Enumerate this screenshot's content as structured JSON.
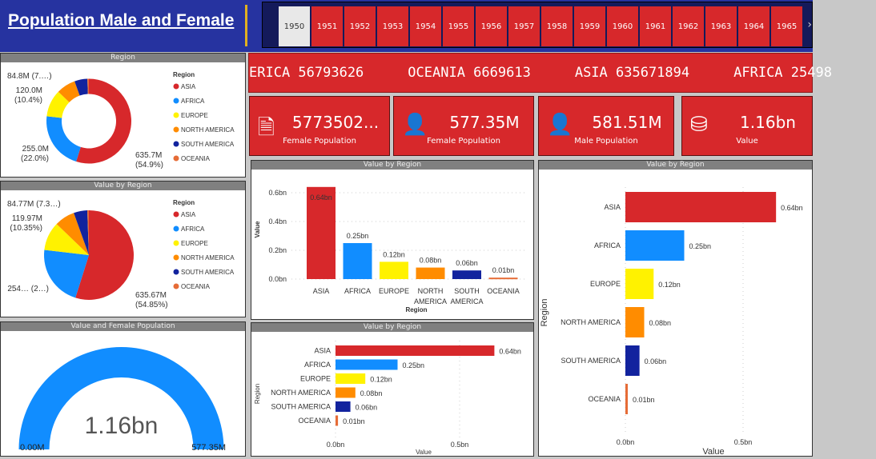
{
  "header": {
    "title": "Population Male and Female"
  },
  "slicer": {
    "years": [
      "1950",
      "1951",
      "1952",
      "1953",
      "1954",
      "1955",
      "1956",
      "1957",
      "1958",
      "1959",
      "1960",
      "1961",
      "1962",
      "1963",
      "1964",
      "1965"
    ],
    "selected": "1950"
  },
  "ticker": {
    "items": [
      "ERICA 56793626",
      "OCEANIA 6669613",
      "ASIA 635671894",
      "AFRICA 25498"
    ]
  },
  "cards": [
    {
      "value": "5773502...",
      "label": "Female Population",
      "icon": "money-plus-icon"
    },
    {
      "value": "577.35M",
      "label": "Female Population",
      "icon": "person-icon"
    },
    {
      "value": "581.51M",
      "label": "Male Population",
      "icon": "person-icon"
    },
    {
      "value": "1.16bn",
      "label": "Value",
      "icon": "coins-icon"
    }
  ],
  "colors": {
    "ASIA": "#d7282b",
    "AFRICA": "#118dff",
    "EUROPE": "#fff200",
    "NORTH AMERICA": "#ff8c00",
    "SOUTH AMERICA": "#12239e",
    "OCEANIA": "#e66c37",
    "header": "#2633a0",
    "card": "#d7282b"
  },
  "chart_data": [
    {
      "type": "pie",
      "variant": "donut",
      "title": "Region",
      "legend_title": "Region",
      "legend_position": "right",
      "categories": [
        "ASIA",
        "AFRICA",
        "EUROPE",
        "NORTH AMERICA",
        "SOUTH AMERICA",
        "OCEANIA"
      ],
      "values": [
        635.7,
        255.0,
        120.0,
        84.8,
        56.8,
        6.7
      ],
      "labels": [
        {
          "v": "635.7M",
          "p": "(54.9%)"
        },
        {
          "v": "255.0M",
          "p": "(22.0%)"
        },
        {
          "v": "120.0M",
          "p": "(10.4%)"
        },
        {
          "v": "84.8M (7.…)",
          "p": ""
        }
      ]
    },
    {
      "type": "pie",
      "title": "Value by Region",
      "legend_title": "Region",
      "legend_position": "right",
      "categories": [
        "ASIA",
        "AFRICA",
        "EUROPE",
        "NORTH AMERICA",
        "SOUTH AMERICA",
        "OCEANIA"
      ],
      "values": [
        635.67,
        254.98,
        119.97,
        84.77,
        56.79,
        6.67
      ],
      "labels": [
        {
          "v": "635.67M",
          "p": "(54.85%)"
        },
        {
          "v": "254… (2…)",
          "p": ""
        },
        {
          "v": "119.97M",
          "p": "(10.35%)"
        },
        {
          "v": "84.77M (7.3…)",
          "p": ""
        }
      ]
    },
    {
      "type": "gauge",
      "title": "Value and Female Population",
      "value": 1.16,
      "value_label": "1.16bn",
      "min_label": "0.00M",
      "max_label": "577.35M"
    },
    {
      "type": "bar",
      "orientation": "vertical",
      "title": "Value by Region",
      "xlabel": "Region",
      "ylabel": "Value",
      "categories": [
        "ASIA",
        "AFRICA",
        "EUROPE",
        "NORTH AMERICA",
        "SOUTH AMERICA",
        "OCEANIA"
      ],
      "values": [
        0.64,
        0.25,
        0.12,
        0.08,
        0.06,
        0.01
      ],
      "data_labels": [
        "0.64bn",
        "0.25bn",
        "0.12bn",
        "0.08bn",
        "0.06bn",
        "0.01bn"
      ],
      "yticks": [
        "0.0bn",
        "0.2bn",
        "0.4bn",
        "0.6bn"
      ],
      "ylim": [
        0,
        0.7
      ],
      "grid": true
    },
    {
      "type": "bar",
      "orientation": "horizontal",
      "title": "Value by Region",
      "xlabel": "Value",
      "ylabel": "Region",
      "categories": [
        "ASIA",
        "AFRICA",
        "EUROPE",
        "NORTH AMERICA",
        "SOUTH AMERICA",
        "OCEANIA"
      ],
      "values": [
        0.64,
        0.25,
        0.12,
        0.08,
        0.06,
        0.01
      ],
      "data_labels": [
        "0.64bn",
        "0.25bn",
        "0.12bn",
        "0.08bn",
        "0.06bn",
        "0.01bn"
      ],
      "xticks": [
        "0.0bn",
        "0.5bn"
      ],
      "xlim": [
        0,
        0.75
      ],
      "grid": true
    },
    {
      "type": "bar",
      "orientation": "horizontal",
      "title": "Value by Region",
      "xlabel": "Value",
      "ylabel": "Region",
      "categories": [
        "ASIA",
        "AFRICA",
        "EUROPE",
        "NORTH AMERICA",
        "SOUTH AMERICA",
        "OCEANIA"
      ],
      "values": [
        0.64,
        0.25,
        0.12,
        0.08,
        0.06,
        0.01
      ],
      "data_labels": [
        "0.64bn",
        "0.25bn",
        "0.12bn",
        "0.08bn",
        "0.06bn",
        "0.01bn"
      ],
      "xticks": [
        "0.0bn",
        "0.5bn"
      ],
      "xlim": [
        0,
        0.66
      ],
      "grid": true
    }
  ]
}
